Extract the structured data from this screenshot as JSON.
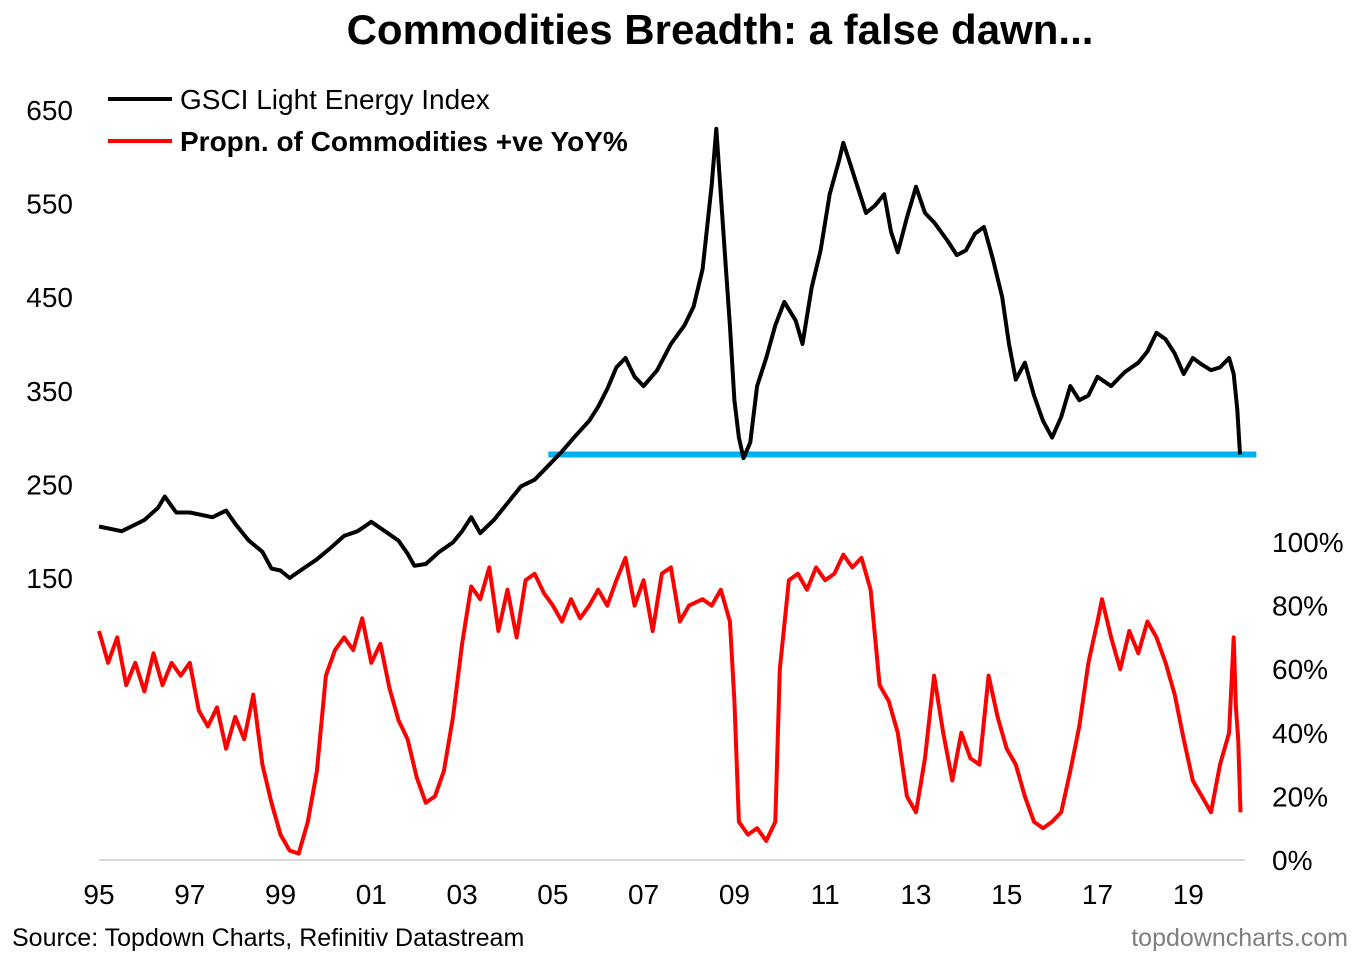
{
  "chart_data": {
    "type": "line",
    "title": "Commodities Breadth: a false dawn...",
    "x_tick_labels": [
      "95",
      "97",
      "99",
      "01",
      "03",
      "05",
      "07",
      "09",
      "11",
      "13",
      "15",
      "17",
      "19"
    ],
    "x_ticks_year": [
      1995,
      1997,
      1999,
      2001,
      2003,
      2005,
      2007,
      2009,
      2011,
      2013,
      2015,
      2017,
      2019
    ],
    "xlim": [
      1995.0,
      2020.25
    ],
    "left_axis": {
      "tick_labels": [
        "650",
        "550",
        "450",
        "350",
        "250",
        "150"
      ],
      "ticks": [
        650,
        550,
        450,
        350,
        250,
        150
      ],
      "ylim": [
        150,
        650
      ]
    },
    "right_axis": {
      "tick_labels": [
        "100%",
        "80%",
        "60%",
        "40%",
        "20%",
        "0%"
      ],
      "ticks": [
        100,
        80,
        60,
        40,
        20,
        0
      ],
      "ylim": [
        0,
        100
      ]
    },
    "support_level": {
      "value": 282,
      "x_start": 2004.9,
      "x_end": 2020.5,
      "color": "#00b0f0"
    },
    "series": [
      {
        "name": "GSCI Light Energy Index",
        "color": "#000000",
        "axis": "left",
        "points": [
          [
            1995.0,
            205
          ],
          [
            1995.5,
            200
          ],
          [
            1996.0,
            212
          ],
          [
            1996.3,
            225
          ],
          [
            1996.45,
            237
          ],
          [
            1996.7,
            220
          ],
          [
            1997.0,
            220
          ],
          [
            1997.5,
            215
          ],
          [
            1997.8,
            222
          ],
          [
            1998.0,
            208
          ],
          [
            1998.3,
            190
          ],
          [
            1998.6,
            178
          ],
          [
            1998.8,
            160
          ],
          [
            1999.0,
            158
          ],
          [
            1999.2,
            150
          ],
          [
            1999.5,
            160
          ],
          [
            1999.8,
            170
          ],
          [
            2000.1,
            182
          ],
          [
            2000.4,
            195
          ],
          [
            2000.7,
            200
          ],
          [
            2001.0,
            210
          ],
          [
            2001.3,
            200
          ],
          [
            2001.6,
            190
          ],
          [
            2001.8,
            176
          ],
          [
            2001.95,
            163
          ],
          [
            2002.2,
            165
          ],
          [
            2002.5,
            178
          ],
          [
            2002.8,
            188
          ],
          [
            2003.0,
            200
          ],
          [
            2003.2,
            215
          ],
          [
            2003.4,
            198
          ],
          [
            2003.7,
            212
          ],
          [
            2004.0,
            230
          ],
          [
            2004.3,
            248
          ],
          [
            2004.6,
            255
          ],
          [
            2004.9,
            270
          ],
          [
            2005.2,
            285
          ],
          [
            2005.5,
            302
          ],
          [
            2005.8,
            318
          ],
          [
            2006.0,
            333
          ],
          [
            2006.2,
            352
          ],
          [
            2006.4,
            375
          ],
          [
            2006.6,
            385
          ],
          [
            2006.8,
            365
          ],
          [
            2007.0,
            355
          ],
          [
            2007.3,
            372
          ],
          [
            2007.6,
            400
          ],
          [
            2007.9,
            420
          ],
          [
            2008.1,
            440
          ],
          [
            2008.3,
            480
          ],
          [
            2008.5,
            570
          ],
          [
            2008.6,
            630
          ],
          [
            2008.7,
            560
          ],
          [
            2008.8,
            490
          ],
          [
            2008.9,
            420
          ],
          [
            2009.0,
            340
          ],
          [
            2009.1,
            300
          ],
          [
            2009.2,
            278
          ],
          [
            2009.35,
            295
          ],
          [
            2009.5,
            355
          ],
          [
            2009.7,
            385
          ],
          [
            2009.9,
            420
          ],
          [
            2010.1,
            445
          ],
          [
            2010.35,
            425
          ],
          [
            2010.5,
            400
          ],
          [
            2010.7,
            460
          ],
          [
            2010.9,
            500
          ],
          [
            2011.1,
            560
          ],
          [
            2011.3,
            595
          ],
          [
            2011.4,
            615
          ],
          [
            2011.5,
            600
          ],
          [
            2011.7,
            570
          ],
          [
            2011.9,
            540
          ],
          [
            2012.1,
            548
          ],
          [
            2012.3,
            560
          ],
          [
            2012.45,
            520
          ],
          [
            2012.6,
            498
          ],
          [
            2012.8,
            535
          ],
          [
            2013.0,
            568
          ],
          [
            2013.2,
            540
          ],
          [
            2013.4,
            530
          ],
          [
            2013.7,
            510
          ],
          [
            2013.9,
            495
          ],
          [
            2014.1,
            500
          ],
          [
            2014.3,
            518
          ],
          [
            2014.5,
            525
          ],
          [
            2014.7,
            490
          ],
          [
            2014.9,
            450
          ],
          [
            2015.05,
            400
          ],
          [
            2015.2,
            362
          ],
          [
            2015.4,
            380
          ],
          [
            2015.6,
            345
          ],
          [
            2015.8,
            318
          ],
          [
            2016.0,
            300
          ],
          [
            2016.2,
            322
          ],
          [
            2016.4,
            355
          ],
          [
            2016.6,
            340
          ],
          [
            2016.8,
            345
          ],
          [
            2017.0,
            365
          ],
          [
            2017.3,
            355
          ],
          [
            2017.6,
            370
          ],
          [
            2017.9,
            380
          ],
          [
            2018.1,
            392
          ],
          [
            2018.3,
            412
          ],
          [
            2018.5,
            405
          ],
          [
            2018.7,
            390
          ],
          [
            2018.9,
            368
          ],
          [
            2019.1,
            385
          ],
          [
            2019.3,
            378
          ],
          [
            2019.5,
            372
          ],
          [
            2019.7,
            375
          ],
          [
            2019.9,
            385
          ],
          [
            2020.0,
            368
          ],
          [
            2020.08,
            330
          ],
          [
            2020.14,
            282
          ]
        ]
      },
      {
        "name": "Propn. of Commodities +ve YoY%",
        "color": "#ff0000",
        "axis": "right",
        "points": [
          [
            1995.0,
            72
          ],
          [
            1995.2,
            62
          ],
          [
            1995.4,
            70
          ],
          [
            1995.6,
            55
          ],
          [
            1995.8,
            62
          ],
          [
            1996.0,
            53
          ],
          [
            1996.2,
            65
          ],
          [
            1996.4,
            55
          ],
          [
            1996.6,
            62
          ],
          [
            1996.8,
            58
          ],
          [
            1997.0,
            62
          ],
          [
            1997.2,
            47
          ],
          [
            1997.4,
            42
          ],
          [
            1997.6,
            48
          ],
          [
            1997.8,
            35
          ],
          [
            1998.0,
            45
          ],
          [
            1998.2,
            38
          ],
          [
            1998.4,
            52
          ],
          [
            1998.6,
            30
          ],
          [
            1998.8,
            18
          ],
          [
            1999.0,
            8
          ],
          [
            1999.2,
            3
          ],
          [
            1999.4,
            2
          ],
          [
            1999.6,
            12
          ],
          [
            1999.8,
            28
          ],
          [
            2000.0,
            58
          ],
          [
            2000.2,
            66
          ],
          [
            2000.4,
            70
          ],
          [
            2000.6,
            66
          ],
          [
            2000.8,
            76
          ],
          [
            2001.0,
            62
          ],
          [
            2001.2,
            68
          ],
          [
            2001.4,
            54
          ],
          [
            2001.6,
            44
          ],
          [
            2001.8,
            38
          ],
          [
            2002.0,
            26
          ],
          [
            2002.2,
            18
          ],
          [
            2002.4,
            20
          ],
          [
            2002.6,
            28
          ],
          [
            2002.8,
            45
          ],
          [
            2003.0,
            68
          ],
          [
            2003.2,
            86
          ],
          [
            2003.4,
            82
          ],
          [
            2003.6,
            92
          ],
          [
            2003.8,
            72
          ],
          [
            2004.0,
            85
          ],
          [
            2004.2,
            70
          ],
          [
            2004.4,
            88
          ],
          [
            2004.6,
            90
          ],
          [
            2004.8,
            84
          ],
          [
            2005.0,
            80
          ],
          [
            2005.2,
            75
          ],
          [
            2005.4,
            82
          ],
          [
            2005.6,
            76
          ],
          [
            2005.8,
            80
          ],
          [
            2006.0,
            85
          ],
          [
            2006.2,
            80
          ],
          [
            2006.4,
            88
          ],
          [
            2006.6,
            95
          ],
          [
            2006.8,
            80
          ],
          [
            2007.0,
            88
          ],
          [
            2007.2,
            72
          ],
          [
            2007.4,
            90
          ],
          [
            2007.6,
            92
          ],
          [
            2007.8,
            75
          ],
          [
            2008.0,
            80
          ],
          [
            2008.3,
            82
          ],
          [
            2008.5,
            80
          ],
          [
            2008.7,
            85
          ],
          [
            2008.9,
            75
          ],
          [
            2009.0,
            50
          ],
          [
            2009.1,
            12
          ],
          [
            2009.3,
            8
          ],
          [
            2009.5,
            10
          ],
          [
            2009.7,
            6
          ],
          [
            2009.9,
            12
          ],
          [
            2010.0,
            60
          ],
          [
            2010.2,
            88
          ],
          [
            2010.4,
            90
          ],
          [
            2010.6,
            85
          ],
          [
            2010.8,
            92
          ],
          [
            2011.0,
            88
          ],
          [
            2011.2,
            90
          ],
          [
            2011.4,
            96
          ],
          [
            2011.6,
            92
          ],
          [
            2011.8,
            95
          ],
          [
            2012.0,
            85
          ],
          [
            2012.2,
            55
          ],
          [
            2012.4,
            50
          ],
          [
            2012.6,
            40
          ],
          [
            2012.8,
            20
          ],
          [
            2013.0,
            15
          ],
          [
            2013.2,
            32
          ],
          [
            2013.4,
            58
          ],
          [
            2013.6,
            40
          ],
          [
            2013.8,
            25
          ],
          [
            2014.0,
            40
          ],
          [
            2014.2,
            32
          ],
          [
            2014.4,
            30
          ],
          [
            2014.6,
            58
          ],
          [
            2014.8,
            45
          ],
          [
            2015.0,
            35
          ],
          [
            2015.2,
            30
          ],
          [
            2015.4,
            20
          ],
          [
            2015.6,
            12
          ],
          [
            2015.8,
            10
          ],
          [
            2016.0,
            12
          ],
          [
            2016.2,
            15
          ],
          [
            2016.4,
            28
          ],
          [
            2016.6,
            42
          ],
          [
            2016.8,
            62
          ],
          [
            2017.0,
            75
          ],
          [
            2017.1,
            82
          ],
          [
            2017.3,
            70
          ],
          [
            2017.5,
            60
          ],
          [
            2017.7,
            72
          ],
          [
            2017.9,
            65
          ],
          [
            2018.1,
            75
          ],
          [
            2018.3,
            70
          ],
          [
            2018.5,
            62
          ],
          [
            2018.7,
            52
          ],
          [
            2018.9,
            38
          ],
          [
            2019.1,
            25
          ],
          [
            2019.3,
            20
          ],
          [
            2019.5,
            15
          ],
          [
            2019.7,
            30
          ],
          [
            2019.9,
            40
          ],
          [
            2020.0,
            70
          ],
          [
            2020.05,
            48
          ],
          [
            2020.1,
            38
          ],
          [
            2020.15,
            15
          ]
        ]
      }
    ]
  },
  "footer": {
    "source": "Source: Topdown Charts, Refinitiv Datastream",
    "brand": "topdowncharts.com"
  }
}
